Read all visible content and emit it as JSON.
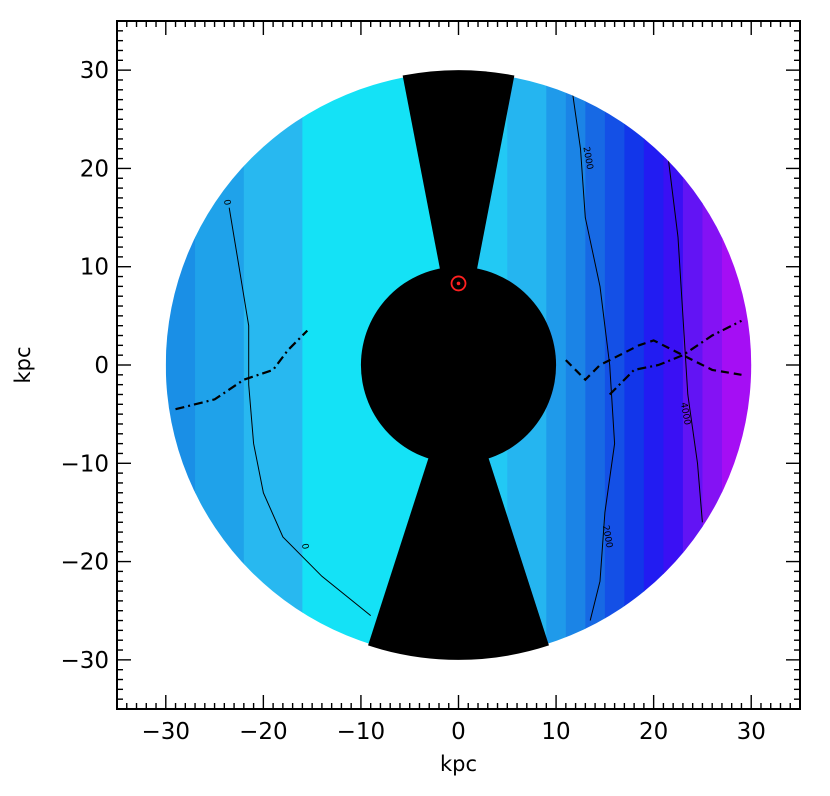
{
  "chart_data": {
    "type": "heatmap",
    "title": "",
    "xlabel": "kpc",
    "ylabel": "kpc",
    "xlim": [
      -35,
      35
    ],
    "ylim": [
      -35,
      35
    ],
    "x_ticks": [
      -30,
      -20,
      -10,
      0,
      10,
      20,
      30
    ],
    "y_ticks": [
      30,
      20,
      10,
      0,
      -10,
      -20,
      -30
    ],
    "x_tick_labels": [
      "−30",
      "−20",
      "−10",
      "0",
      "10",
      "20",
      "30"
    ],
    "y_tick_labels": [
      "30",
      "20",
      "10",
      "0",
      "−10",
      "−20",
      "−30"
    ],
    "disk_radius_kpc": 30,
    "inner_mask_radius_kpc": 10,
    "masked_wedges_deg_half_width": [
      11,
      18
    ],
    "sun_position_kpc": [
      0,
      8.3
    ],
    "grid": false,
    "legend": "none",
    "color_bands": [
      {
        "x_from": -30,
        "x_to": -27,
        "color": "#1a8fe6"
      },
      {
        "x_from": -27,
        "x_to": -22,
        "color": "#1fa2ea"
      },
      {
        "x_from": -22,
        "x_to": -16,
        "color": "#28b8f0"
      },
      {
        "x_from": -16,
        "x_to": -2,
        "color": "#14e2f6"
      },
      {
        "x_from": -2,
        "x_to": 5,
        "color": "#22c9f4"
      },
      {
        "x_from": 5,
        "x_to": 9,
        "color": "#25b5f0"
      },
      {
        "x_from": 9,
        "x_to": 11,
        "color": "#1f9aea"
      },
      {
        "x_from": 11,
        "x_to": 13,
        "color": "#1b84e6"
      },
      {
        "x_from": 13,
        "x_to": 15,
        "color": "#1769e4"
      },
      {
        "x_from": 15,
        "x_to": 17,
        "color": "#1450e6"
      },
      {
        "x_from": 17,
        "x_to": 19,
        "color": "#1236ea"
      },
      {
        "x_from": 19,
        "x_to": 21,
        "color": "#221cf2"
      },
      {
        "x_from": 21,
        "x_to": 23,
        "color": "#3a10f4"
      },
      {
        "x_from": 23,
        "x_to": 25,
        "color": "#6214f4"
      },
      {
        "x_from": 25,
        "x_to": 27,
        "color": "#8412f4"
      },
      {
        "x_from": 27,
        "x_to": 30,
        "color": "#a50ef4"
      }
    ],
    "contours": [
      {
        "label": "0",
        "points": [
          [
            -23.5,
            16
          ],
          [
            -22.5,
            10
          ],
          [
            -21.5,
            4
          ],
          [
            -21.5,
            -2
          ],
          [
            -21,
            -8
          ],
          [
            -20,
            -13
          ],
          [
            -18,
            -17.5
          ],
          [
            -14,
            -21.5
          ],
          [
            -9,
            -25.5
          ]
        ]
      },
      {
        "label": "2000",
        "points": [
          [
            11.5,
            29
          ],
          [
            12.5,
            22
          ],
          [
            13,
            15
          ],
          [
            14.5,
            8
          ],
          [
            15.5,
            0
          ],
          [
            16,
            -8
          ],
          [
            15,
            -15
          ],
          [
            14.5,
            -22
          ],
          [
            13.5,
            -26
          ]
        ]
      },
      {
        "label": "4000",
        "points": [
          [
            21.5,
            21
          ],
          [
            22.5,
            13
          ],
          [
            23,
            5
          ],
          [
            23.5,
            -3
          ],
          [
            24.5,
            -10
          ],
          [
            25,
            -16
          ]
        ]
      }
    ],
    "contour_label_positions": [
      {
        "label": "0",
        "at": [
          -24,
          16.5
        ]
      },
      {
        "label": "0",
        "at": [
          -16,
          -18.5
        ]
      },
      {
        "label": "2000",
        "at": [
          13,
          21
        ]
      },
      {
        "label": "2000",
        "at": [
          15,
          -17.5
        ]
      },
      {
        "label": "4000",
        "at": [
          23,
          -5
        ]
      }
    ],
    "warp_lines": [
      {
        "style": "dash-dot",
        "points": [
          [
            -29,
            -4.5
          ],
          [
            -25,
            -3.5
          ],
          [
            -22,
            -1.5
          ],
          [
            -19,
            -0.5
          ],
          [
            -17.5,
            1.5
          ],
          [
            -15.5,
            3.5
          ]
        ]
      },
      {
        "style": "dashed",
        "points": [
          [
            11,
            0.5
          ],
          [
            13,
            -1.5
          ],
          [
            14.5,
            0
          ],
          [
            16.5,
            1
          ],
          [
            18.5,
            2
          ],
          [
            20,
            2.5
          ],
          [
            22,
            1.5
          ],
          [
            24,
            0.5
          ],
          [
            26,
            -0.5
          ],
          [
            29,
            -1
          ]
        ]
      },
      {
        "style": "dash-dot",
        "points": [
          [
            15.5,
            -3
          ],
          [
            18,
            -0.5
          ],
          [
            20.5,
            0
          ],
          [
            23,
            1
          ],
          [
            26,
            3
          ],
          [
            29,
            4.5
          ]
        ]
      }
    ]
  }
}
